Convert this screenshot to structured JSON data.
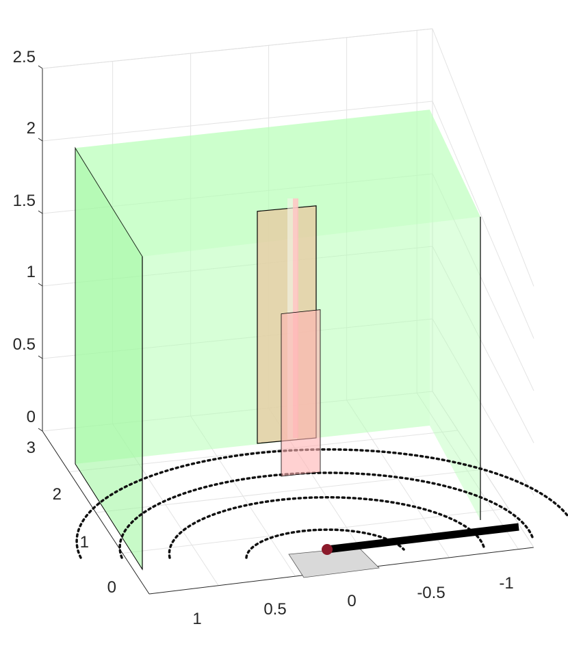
{
  "chart_data": {
    "type": "3d-scene",
    "title": "",
    "xlabel": "",
    "ylabel": "",
    "zlabel": "",
    "grid": true,
    "xlim": [
      -1.25,
      1.25
    ],
    "ylim": [
      -0.25,
      3
    ],
    "zlim": [
      0,
      2.5
    ],
    "x_ticks": [
      "1",
      "0.5",
      "0",
      "-0.5",
      "-1"
    ],
    "y_ticks": [
      "0",
      "1",
      "2",
      "3"
    ],
    "z_ticks": [
      "0",
      "0.5",
      "1",
      "1.5",
      "2",
      "2.5"
    ],
    "green_enclosure": {
      "color": "#b7ffb7",
      "opacity": 0.55,
      "x_range": [
        -1.0,
        1.0
      ],
      "y_range": [
        0,
        3
      ],
      "height": 2.2,
      "walls": [
        "back",
        "left",
        "right"
      ]
    },
    "columns": [
      {
        "name": "tall column",
        "color": "#e8c8a0",
        "height": 1.6
      },
      {
        "name": "short column",
        "color": "#ffb3b3",
        "height": 0.8
      }
    ],
    "dotted_arcs": {
      "color": "#111111",
      "radii": [
        0.75,
        1.3,
        1.8,
        2.3
      ]
    },
    "ground_patch": {
      "color": "#d9d9d9"
    },
    "boom": {
      "color": "#000000",
      "from": [
        0.0,
        0.0
      ],
      "to": [
        -1.3,
        0.0
      ]
    },
    "pivot": {
      "color": "#8b1a2b",
      "position": [
        0,
        0,
        0
      ]
    }
  }
}
